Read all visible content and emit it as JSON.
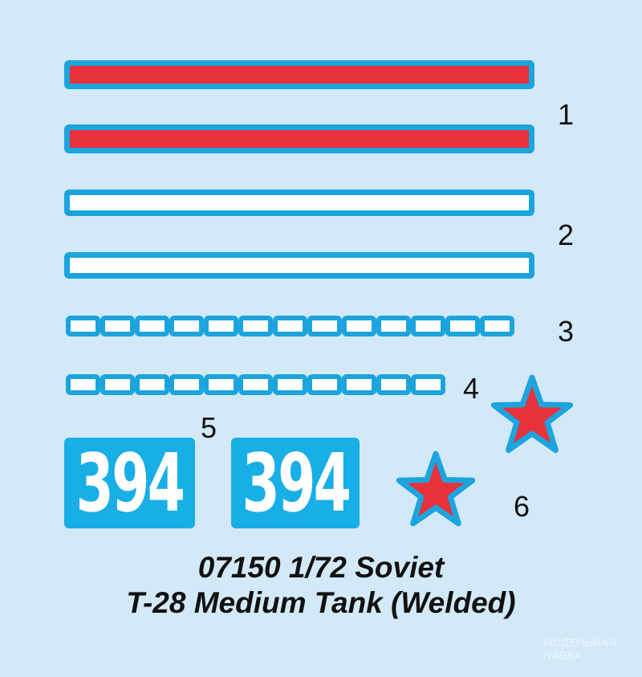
{
  "decals": {
    "labels": [
      "1",
      "2",
      "3",
      "4",
      "5",
      "6"
    ],
    "plate_number": "394",
    "colors": {
      "background": "#d3e9f8",
      "outline": "#1ba4dd",
      "red": "#e8313b",
      "white": "#ffffff",
      "plate": "#18aee6"
    }
  },
  "title": {
    "line1": "07150 1/72 Soviet",
    "line2": "T-28 Medium Tank (Welded)"
  },
  "watermark": {
    "line1": "МОДЕЛЬНАЯ",
    "line2": "ЛАВКА"
  }
}
